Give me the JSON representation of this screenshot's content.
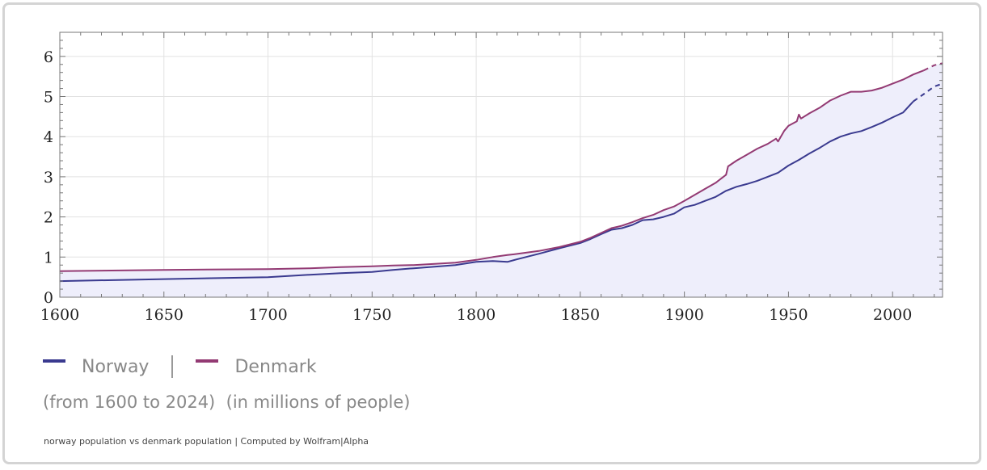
{
  "colors": {
    "norway": "#3a3a8f",
    "denmark": "#933a73",
    "fill": "#eeeefb",
    "grid": "#e2e2e2",
    "axis": "#777777"
  },
  "legend": {
    "norway": "Norway",
    "denmark": "Denmark"
  },
  "notes": {
    "range": "(from 1600 to 2024)",
    "units": "(in millions of people)"
  },
  "footer": {
    "query": "norway population vs denmark population",
    "separator": " | ",
    "credit": "Computed by Wolfram|Alpha"
  },
  "chart_data": {
    "type": "line",
    "title": "",
    "xlabel": "",
    "ylabel": "",
    "xlim": [
      1600,
      2024
    ],
    "ylim": [
      0,
      6.6
    ],
    "x_ticks": [
      1600,
      1650,
      1700,
      1750,
      1800,
      1850,
      1900,
      1950,
      2000
    ],
    "y_ticks": [
      0,
      1,
      2,
      3,
      4,
      5,
      6
    ],
    "grid": true,
    "legend_position": "bottom-left",
    "series": [
      {
        "name": "Norway",
        "x": [
          1600,
          1650,
          1700,
          1720,
          1735,
          1750,
          1760,
          1770,
          1780,
          1790,
          1800,
          1808,
          1815,
          1820,
          1830,
          1840,
          1850,
          1855,
          1860,
          1865,
          1870,
          1875,
          1880,
          1885,
          1890,
          1895,
          1900,
          1905,
          1910,
          1915,
          1920,
          1925,
          1930,
          1935,
          1940,
          1945,
          1950,
          1955,
          1960,
          1965,
          1970,
          1975,
          1980,
          1985,
          1990,
          1995,
          2000,
          2005,
          2010,
          2015,
          2020,
          2024
        ],
        "y": [
          0.4,
          0.45,
          0.5,
          0.56,
          0.6,
          0.63,
          0.68,
          0.72,
          0.76,
          0.8,
          0.88,
          0.9,
          0.88,
          0.95,
          1.08,
          1.22,
          1.35,
          1.45,
          1.57,
          1.68,
          1.72,
          1.8,
          1.92,
          1.94,
          2.0,
          2.08,
          2.24,
          2.3,
          2.4,
          2.5,
          2.65,
          2.75,
          2.82,
          2.9,
          3.0,
          3.1,
          3.28,
          3.42,
          3.58,
          3.72,
          3.88,
          4.0,
          4.08,
          4.14,
          4.24,
          4.35,
          4.48,
          4.6,
          4.88,
          5.06,
          5.25,
          5.32
        ],
        "projected_from": 2014
      },
      {
        "name": "Denmark",
        "x": [
          1600,
          1650,
          1700,
          1720,
          1735,
          1750,
          1760,
          1770,
          1780,
          1790,
          1800,
          1808,
          1815,
          1820,
          1830,
          1840,
          1850,
          1855,
          1860,
          1865,
          1870,
          1875,
          1880,
          1885,
          1890,
          1895,
          1900,
          1905,
          1910,
          1915,
          1920,
          1921,
          1925,
          1930,
          1935,
          1940,
          1944,
          1945,
          1948,
          1950,
          1954,
          1955,
          1956,
          1960,
          1965,
          1970,
          1975,
          1980,
          1985,
          1990,
          1995,
          2000,
          2005,
          2010,
          2015,
          2020,
          2024
        ],
        "y": [
          0.65,
          0.68,
          0.7,
          0.72,
          0.75,
          0.77,
          0.79,
          0.8,
          0.83,
          0.86,
          0.93,
          1.0,
          1.05,
          1.08,
          1.15,
          1.25,
          1.38,
          1.48,
          1.6,
          1.72,
          1.78,
          1.87,
          1.97,
          2.05,
          2.17,
          2.26,
          2.4,
          2.55,
          2.7,
          2.85,
          3.05,
          3.26,
          3.4,
          3.55,
          3.7,
          3.82,
          3.95,
          3.88,
          4.15,
          4.27,
          4.38,
          4.55,
          4.45,
          4.58,
          4.72,
          4.9,
          5.02,
          5.12,
          5.12,
          5.15,
          5.22,
          5.32,
          5.42,
          5.55,
          5.65,
          5.78,
          5.83
        ],
        "projected_from": 2015
      }
    ]
  }
}
